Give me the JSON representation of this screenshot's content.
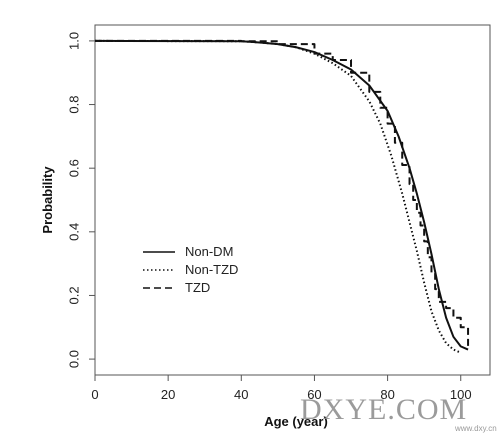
{
  "chart_data": {
    "type": "line",
    "title": "",
    "xlabel": "Age (year)",
    "ylabel": "Probability",
    "xlim": [
      0,
      108
    ],
    "ylim": [
      -0.05,
      1.05
    ],
    "xticks": [
      0,
      20,
      40,
      60,
      80,
      100
    ],
    "yticks": [
      0.0,
      0.2,
      0.4,
      0.6,
      0.8,
      1.0
    ],
    "xtick_labels": [
      "0",
      "20",
      "40",
      "60",
      "80",
      "100"
    ],
    "ytick_labels": [
      "0.0",
      "0.2",
      "0.4",
      "0.6",
      "0.8",
      "1.0"
    ],
    "grid": false,
    "legend_position": "middle-left",
    "series": [
      {
        "name": "Non-DM",
        "style": "solid",
        "step": false,
        "x": [
          0,
          40,
          45,
          50,
          55,
          60,
          65,
          70,
          75,
          80,
          83,
          86,
          88,
          90,
          92,
          94,
          96,
          98,
          100,
          102
        ],
        "y": [
          1.0,
          0.999,
          0.995,
          0.99,
          0.98,
          0.965,
          0.94,
          0.91,
          0.86,
          0.78,
          0.7,
          0.6,
          0.52,
          0.43,
          0.33,
          0.22,
          0.13,
          0.07,
          0.04,
          0.03
        ]
      },
      {
        "name": "Non-TZD",
        "style": "dotted",
        "step": false,
        "x": [
          0,
          40,
          45,
          50,
          55,
          60,
          65,
          70,
          75,
          78,
          81,
          84,
          86,
          88,
          90,
          92,
          94,
          96,
          98,
          100
        ],
        "y": [
          1.0,
          0.999,
          0.995,
          0.99,
          0.98,
          0.96,
          0.93,
          0.89,
          0.81,
          0.74,
          0.64,
          0.52,
          0.43,
          0.34,
          0.24,
          0.15,
          0.09,
          0.05,
          0.03,
          0.02
        ]
      },
      {
        "name": "TZD",
        "style": "dashed",
        "step": true,
        "x": [
          0,
          40,
          50,
          60,
          65,
          70,
          75,
          78,
          80,
          82,
          84,
          86,
          87,
          88,
          89,
          90,
          91,
          92,
          93,
          94,
          96,
          98,
          100,
          102
        ],
        "y": [
          1.0,
          0.999,
          0.99,
          0.96,
          0.94,
          0.9,
          0.84,
          0.79,
          0.74,
          0.68,
          0.61,
          0.55,
          0.5,
          0.46,
          0.42,
          0.37,
          0.32,
          0.27,
          0.22,
          0.18,
          0.16,
          0.13,
          0.1,
          0.04
        ]
      }
    ]
  },
  "watermark": {
    "main": "DXYE.COM",
    "sub": "www.dxy.cn"
  }
}
